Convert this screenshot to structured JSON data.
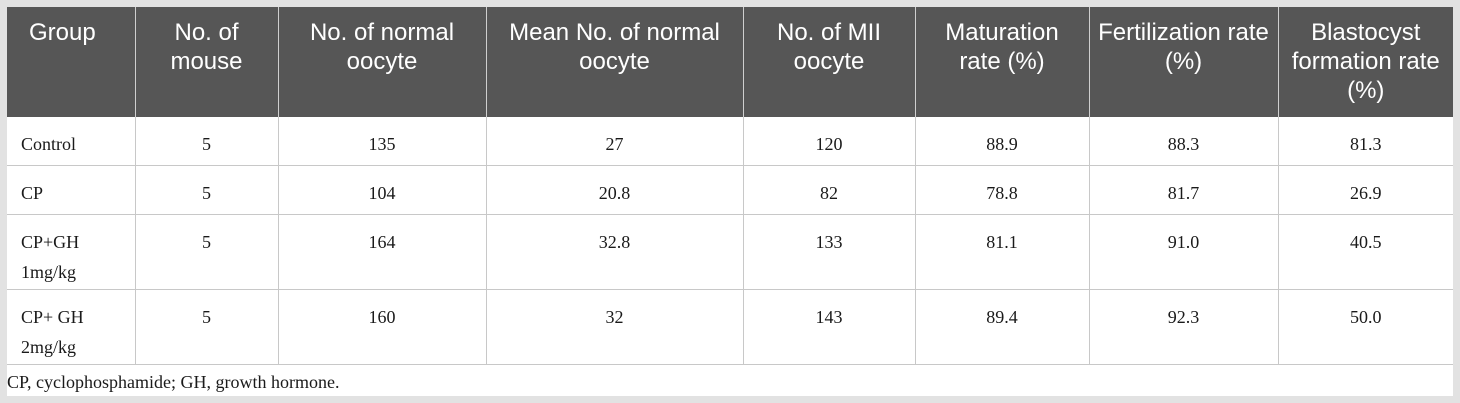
{
  "table": {
    "headers": [
      "Group",
      "No. of mouse",
      "No. of normal oocyte",
      "Mean No. of normal oocyte",
      "No. of MII oocyte",
      "Maturation rate (%)",
      "Fertilization rate (%)",
      "Blastocyst formation rate (%)"
    ],
    "rows": [
      [
        "Control",
        "5",
        "135",
        "27",
        "120",
        "88.9",
        "88.3",
        "81.3"
      ],
      [
        "CP",
        "5",
        "104",
        "20.8",
        "82",
        "78.8",
        "81.7",
        "26.9"
      ],
      [
        "CP+GH 1mg/kg",
        "5",
        "164",
        "32.8",
        "133",
        "81.1",
        "91.0",
        "40.5"
      ],
      [
        "CP+ GH 2mg/kg",
        "5",
        "160",
        "32",
        "143",
        "89.4",
        "92.3",
        "50.0"
      ]
    ]
  },
  "footnote": "CP, cyclophosphamide; GH, growth hormone.",
  "colors": {
    "header_bg": "#565656",
    "header_text": "#ffffff",
    "page_bg": "#e2e2e2"
  }
}
